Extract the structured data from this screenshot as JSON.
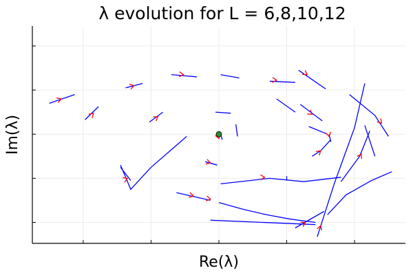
{
  "chart_data": {
    "type": "line",
    "title": "λ evolution for L = 6,8,10,12",
    "xlabel": "Re(λ)",
    "ylabel": "Im(λ)",
    "xlim": [
      -1.1,
      1.1
    ],
    "ylim": [
      -0.99,
      0.98
    ],
    "grid": true,
    "legend": "none",
    "tick_labels_shown": false,
    "colors": {
      "line": "#0000ff",
      "arrow": "#ff0000",
      "point": "#2e8b2e"
    },
    "series": [
      {
        "points": [
          [
            -1.0,
            0.28
          ],
          [
            -0.85,
            0.36
          ]
        ],
        "arrow": [
          -0.93,
          0.32
        ]
      },
      {
        "points": [
          [
            -0.55,
            0.42
          ],
          [
            -0.45,
            0.46
          ]
        ],
        "arrow": [
          -0.5,
          0.44
        ]
      },
      {
        "points": [
          [
            -0.28,
            0.54
          ],
          [
            -0.13,
            0.52
          ]
        ],
        "arrow": [
          -0.21,
          0.54
        ]
      },
      {
        "points": [
          [
            0.01,
            0.54
          ],
          [
            0.12,
            0.51
          ]
        ]
      },
      {
        "points": [
          [
            -0.58,
            -0.28
          ],
          [
            -0.52,
            -0.5
          ],
          [
            -0.4,
            -0.3
          ],
          [
            -0.19,
            -0.02
          ]
        ],
        "arrow": [
          -0.54,
          -0.4
        ]
      },
      {
        "points": [
          [
            -0.79,
            0.13
          ],
          [
            -0.71,
            0.25
          ]
        ],
        "arrow": [
          -0.74,
          0.19
        ]
      },
      {
        "points": [
          [
            -0.41,
            0.11
          ],
          [
            -0.33,
            0.2
          ]
        ],
        "arrow": [
          -0.36,
          0.16
        ]
      },
      {
        "points": [
          [
            -0.08,
            -0.25
          ],
          [
            -0.01,
            -0.28
          ]
        ]
      },
      {
        "points": [
          [
            -0.02,
            0.2
          ],
          [
            0.07,
            0.19
          ]
        ]
      },
      {
        "points": [
          [
            0.0,
            -0.62
          ],
          [
            0.14,
            -0.68
          ],
          [
            0.28,
            -0.73
          ],
          [
            0.42,
            -0.77
          ],
          [
            0.57,
            -0.8
          ]
        ],
        "arrow": [
          -0.05,
          -0.59
        ]
      },
      {
        "points": [
          [
            -0.05,
            -0.78
          ],
          [
            0.57,
            -0.82
          ]
        ]
      },
      {
        "points": [
          [
            -0.25,
            -0.53
          ],
          [
            -0.05,
            -0.6
          ]
        ],
        "arrow": [
          -0.15,
          -0.56
        ]
      },
      {
        "points": [
          [
            0.45,
            -0.85
          ],
          [
            0.62,
            -0.7
          ]
        ],
        "arrow": [
          0.51,
          -0.8
        ]
      },
      {
        "points": [
          [
            0.01,
            -0.45
          ],
          [
            0.3,
            -0.4
          ],
          [
            0.5,
            -0.43
          ],
          [
            0.72,
            -0.39
          ]
        ],
        "arrow": [
          0.27,
          -0.39
        ]
      },
      {
        "points": [
          [
            0.64,
            -0.73
          ],
          [
            0.75,
            -0.55
          ],
          [
            0.9,
            -0.42
          ],
          [
            1.02,
            -0.34
          ]
        ]
      },
      {
        "points": [
          [
            0.58,
            -0.93
          ],
          [
            0.68,
            -0.45
          ],
          [
            0.8,
            0.06
          ],
          [
            0.86,
            0.46
          ]
        ],
        "arrow": [
          0.6,
          -0.83
        ]
      },
      {
        "points": [
          [
            0.72,
            -0.43
          ],
          [
            0.83,
            -0.2
          ],
          [
            0.89,
            0.03
          ]
        ],
        "arrow": [
          0.84,
          -0.18
        ]
      },
      {
        "points": [
          [
            0.86,
            0.08
          ],
          [
            0.92,
            -0.2
          ]
        ]
      },
      {
        "points": [
          [
            0.77,
            0.36
          ],
          [
            0.92,
            0.17
          ],
          [
            1.0,
            -0.02
          ]
        ],
        "arrow": [
          0.96,
          0.1
        ]
      },
      {
        "points": [
          [
            0.34,
            0.32
          ],
          [
            0.45,
            0.2
          ]
        ]
      },
      {
        "points": [
          [
            0.3,
            0.48
          ],
          [
            0.45,
            0.47
          ]
        ],
        "arrow": [
          0.34,
          0.49
        ]
      },
      {
        "points": [
          [
            0.48,
            0.27
          ],
          [
            0.61,
            0.12
          ]
        ],
        "arrow": [
          0.55,
          0.18
        ]
      },
      {
        "points": [
          [
            0.47,
            0.58
          ],
          [
            0.63,
            0.41
          ]
        ],
        "arrow": [
          0.52,
          0.54
        ]
      },
      {
        "points": [
          [
            0.53,
            0.07
          ],
          [
            0.64,
            0.0
          ]
        ]
      },
      {
        "points": [
          [
            0.65,
            0.0
          ],
          [
            0.66,
            -0.07
          ]
        ],
        "arrow": [
          0.65,
          -0.02
        ]
      },
      {
        "points": [
          [
            -0.52,
            -0.42
          ],
          [
            -0.58,
            -0.3
          ]
        ]
      },
      {
        "points": [
          [
            0.55,
            -0.2
          ],
          [
            0.6,
            -0.15
          ],
          [
            0.66,
            -0.05
          ]
        ],
        "arrow": [
          0.6,
          -0.15
        ]
      },
      {
        "points": [
          [
            0.4,
            -0.38
          ],
          [
            0.4,
            -0.42
          ]
        ]
      },
      {
        "points": [
          [
            0.1,
            0.09
          ],
          [
            0.11,
            -0.02
          ]
        ]
      },
      {
        "points": [
          [
            -0.08,
            -0.25
          ],
          [
            -0.01,
            -0.28
          ]
        ],
        "arrow": [
          -0.05,
          -0.26
        ]
      },
      {
        "points": [
          [
            0.01,
            0.0
          ],
          [
            0.02,
            -0.05
          ]
        ],
        "arrow": [
          0.0,
          -0.04
        ]
      }
    ],
    "points": [
      {
        "x": 0.0,
        "y": 0.0
      }
    ]
  }
}
